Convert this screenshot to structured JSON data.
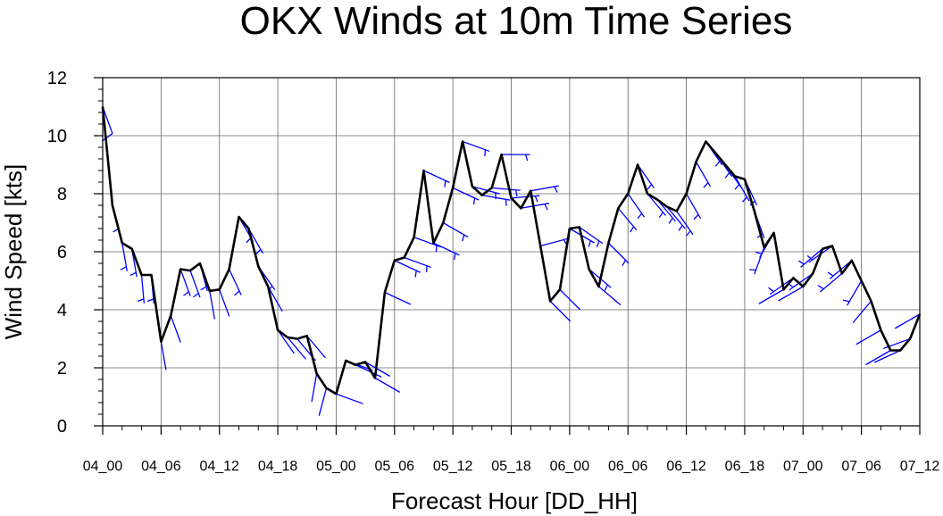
{
  "chart_data": {
    "type": "line",
    "title": "OKX Winds at 10m Time Series",
    "xlabel": "Forecast Hour [DD_HH]",
    "ylabel": "Wind Speed [kts]",
    "ylim": [
      0,
      12
    ],
    "yticks": [
      0,
      2,
      4,
      6,
      8,
      10,
      12
    ],
    "xlim": [
      0,
      84
    ],
    "xticks": [
      {
        "hour": 0,
        "label": "04_00"
      },
      {
        "hour": 6,
        "label": "04_06"
      },
      {
        "hour": 12,
        "label": "04_12"
      },
      {
        "hour": 18,
        "label": "04_18"
      },
      {
        "hour": 24,
        "label": "05_00"
      },
      {
        "hour": 30,
        "label": "05_06"
      },
      {
        "hour": 36,
        "label": "05_12"
      },
      {
        "hour": 42,
        "label": "05_18"
      },
      {
        "hour": 48,
        "label": "06_00"
      },
      {
        "hour": 54,
        "label": "06_06"
      },
      {
        "hour": 60,
        "label": "06_12"
      },
      {
        "hour": 66,
        "label": "06_18"
      },
      {
        "hour": 72,
        "label": "07_00"
      },
      {
        "hour": 78,
        "label": "07_06"
      },
      {
        "hour": 84,
        "label": "07_12"
      }
    ],
    "grid": true,
    "line_color": "#000000",
    "barb_color": "#0000ff",
    "series": [
      {
        "x": [
          0,
          1,
          2,
          3,
          4,
          5,
          6,
          7,
          8,
          9,
          10,
          11,
          12,
          13,
          14,
          15,
          16,
          17,
          18,
          19,
          20,
          21,
          22,
          23,
          24,
          25,
          26,
          27,
          28,
          29,
          30,
          31,
          32,
          33,
          34,
          35,
          36,
          37,
          38,
          39,
          40,
          41,
          42,
          43,
          44,
          45,
          46,
          47,
          48,
          49,
          50,
          51,
          52,
          53,
          54,
          55,
          56,
          57,
          58,
          59,
          60,
          61,
          62,
          63,
          64,
          65,
          66,
          67,
          68,
          69,
          70,
          71,
          72,
          73,
          74,
          75,
          76,
          77,
          78,
          79,
          80,
          81,
          82,
          83,
          84
        ],
        "values": [
          11.0,
          7.6,
          6.3,
          6.1,
          5.2,
          5.2,
          2.9,
          3.8,
          5.4,
          5.35,
          5.6,
          4.65,
          4.7,
          5.4,
          7.2,
          6.8,
          5.5,
          4.8,
          3.3,
          3.05,
          3.0,
          3.1,
          1.8,
          1.3,
          1.1,
          2.25,
          2.1,
          2.2,
          1.65,
          4.6,
          5.7,
          5.8,
          6.5,
          8.8,
          6.3,
          7.0,
          8.2,
          9.8,
          8.25,
          7.95,
          8.2,
          9.35,
          7.85,
          7.5,
          8.1,
          6.2,
          4.3,
          4.7,
          6.8,
          6.85,
          5.4,
          4.8,
          6.3,
          7.5,
          8.0,
          9.0,
          8.0,
          7.8,
          7.55,
          7.4,
          8.0,
          9.1,
          9.8,
          9.4,
          9.0,
          8.6,
          8.5,
          7.4,
          6.15,
          6.65,
          4.7,
          5.1,
          4.8,
          5.25,
          6.1,
          6.2,
          5.25,
          5.7,
          5.0,
          4.3,
          3.3,
          2.6,
          2.6,
          3.0,
          3.85
        ]
      }
    ],
    "wind_barbs": {
      "description_hidden": true,
      "dir_deg": [
        200,
        195,
        190,
        190,
        185,
        185,
        190,
        200,
        200,
        200,
        195,
        190,
        200,
        205,
        210,
        210,
        215,
        210,
        215,
        220,
        220,
        220,
        170,
        165,
        250,
        250,
        245,
        240,
        240,
        245,
        245,
        250,
        250,
        245,
        245,
        240,
        245,
        250,
        255,
        260,
        265,
        270,
        275,
        280,
        280,
        285,
        225,
        225,
        240,
        235,
        230,
        230,
        225,
        220,
        215,
        215,
        220,
        220,
        220,
        215,
        210,
        210,
        215,
        215,
        215,
        210,
        205,
        200,
        160,
        150,
        120,
        125,
        120,
        125,
        130,
        125,
        130,
        130,
        150,
        140,
        120,
        120,
        115,
        110,
        120
      ]
    }
  }
}
